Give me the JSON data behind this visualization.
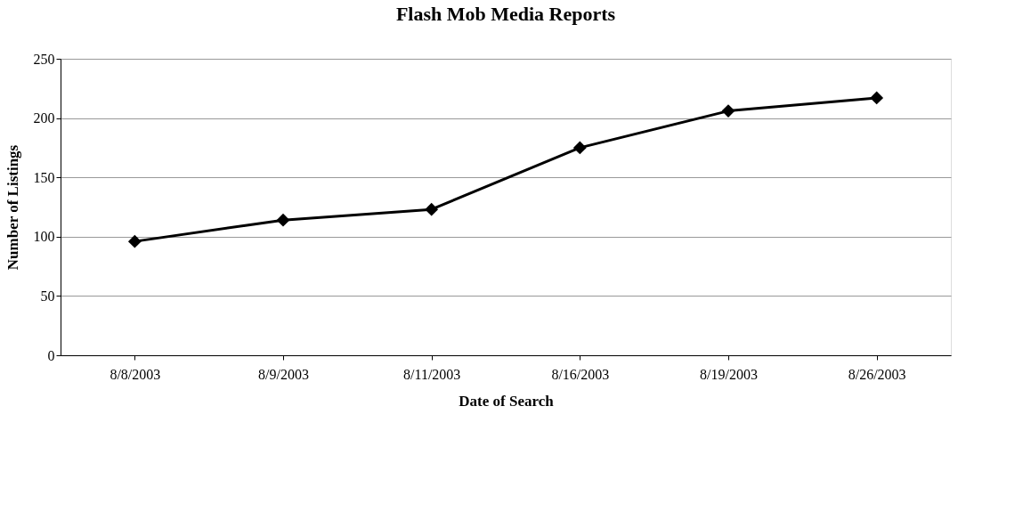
{
  "chart_data": {
    "type": "line",
    "title": "Flash Mob Media Reports",
    "xlabel": "Date of Search",
    "ylabel": "Number of Listings",
    "categories": [
      "8/8/2003",
      "8/9/2003",
      "8/11/2003",
      "8/16/2003",
      "8/19/2003",
      "8/26/2003"
    ],
    "series": [
      {
        "color": "#000000",
        "values": [
          96,
          114,
          123,
          175,
          206,
          217
        ]
      }
    ],
    "ylim": [
      0,
      250
    ],
    "yticks": [
      0,
      50,
      100,
      150,
      200,
      250
    ],
    "grid": "y",
    "legend": false,
    "marker": "diamond",
    "line_style": "solid"
  }
}
